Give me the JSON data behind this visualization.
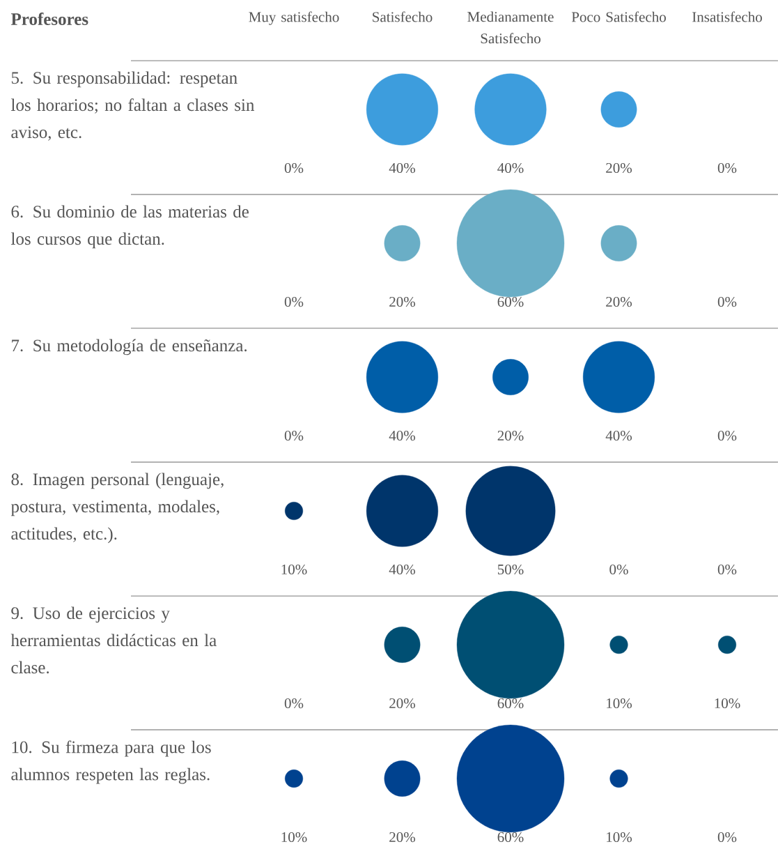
{
  "chart_data": {
    "type": "other",
    "title": "Profesores",
    "categories": [
      "Muy satisfecho",
      "Satisfecho",
      "Medianamente Satisfecho",
      "Poco Satisfecho",
      "Insatisfecho"
    ],
    "colors": [
      "#3d9ddd",
      "#6aaec6",
      "#005ea8",
      "#00356b",
      "#004f73",
      "#00428f"
    ],
    "series": [
      {
        "name": "5. Su responsabilidad: respetan los horarios; no faltan a clases sin aviso, etc.",
        "values": [
          0,
          40,
          40,
          20,
          0
        ],
        "value_labels": [
          "0%",
          "40%",
          "40%",
          "20%",
          "0%"
        ]
      },
      {
        "name": "6. Su dominio de las materias de los cursos que dictan.",
        "values": [
          0,
          20,
          60,
          20,
          0
        ],
        "value_labels": [
          "0%",
          "20%",
          "60%",
          "20%",
          "0%"
        ]
      },
      {
        "name": "7. Su metodología de enseñanza.",
        "values": [
          0,
          40,
          20,
          40,
          0
        ],
        "value_labels": [
          "0%",
          "40%",
          "20%",
          "40%",
          "0%"
        ]
      },
      {
        "name": "8. Imagen personal (lenguaje, postura, vestimenta, modales, actitudes, etc.).",
        "values": [
          10,
          40,
          50,
          0,
          0
        ],
        "value_labels": [
          "10%",
          "40%",
          "50%",
          "0%",
          "0%"
        ]
      },
      {
        "name": "9. Uso de ejercicios y herramientas didácticas en la clase.",
        "values": [
          0,
          20,
          60,
          10,
          10
        ],
        "value_labels": [
          "0%",
          "20%",
          "60%",
          "10%",
          "10%"
        ]
      },
      {
        "name": "10. Su firmeza para que los alumnos respeten las reglas.",
        "values": [
          10,
          20,
          60,
          10,
          0
        ],
        "value_labels": [
          "10%",
          "20%",
          "60%",
          "10%",
          "0%"
        ]
      }
    ]
  }
}
